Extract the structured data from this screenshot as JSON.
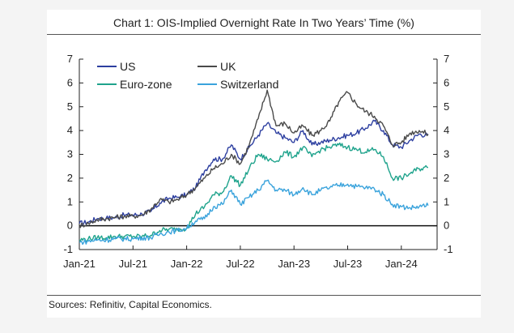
{
  "title": "Chart 1: OIS-Implied Overnight Rate In Two Years’ Time (%)",
  "source": "Sources: Refinitiv, Capital Economics.",
  "chart_data": {
    "type": "line",
    "ylim": [
      -1,
      7
    ],
    "y_ticks": [
      "-1",
      "0",
      "1",
      "2",
      "3",
      "4",
      "5",
      "6",
      "7"
    ],
    "x_ticks": [
      "Jan-21",
      "Jul-21",
      "Jan-22",
      "Jul-22",
      "Jan-23",
      "Jul-23",
      "Jan-24"
    ],
    "legend": {
      "placement": "top-left"
    },
    "series": [
      {
        "name": "US",
        "color": "#2d3fa0",
        "points": [
          [
            "2021-01",
            0.1
          ],
          [
            "2021-02",
            0.15
          ],
          [
            "2021-03",
            0.3
          ],
          [
            "2021-04",
            0.32
          ],
          [
            "2021-05",
            0.35
          ],
          [
            "2021-06",
            0.45
          ],
          [
            "2021-07",
            0.45
          ],
          [
            "2021-08",
            0.5
          ],
          [
            "2021-09",
            0.6
          ],
          [
            "2021-10",
            0.95
          ],
          [
            "2021-11",
            1.15
          ],
          [
            "2021-12",
            1.2
          ],
          [
            "2022-01",
            1.3
          ],
          [
            "2022-02",
            1.6
          ],
          [
            "2022-03",
            2.3
          ],
          [
            "2022-04",
            2.8
          ],
          [
            "2022-05",
            2.8
          ],
          [
            "2022-06",
            3.4
          ],
          [
            "2022-07",
            2.8
          ],
          [
            "2022-08",
            3.3
          ],
          [
            "2022-09",
            3.8
          ],
          [
            "2022-10",
            4.3
          ],
          [
            "2022-11",
            3.9
          ],
          [
            "2022-12",
            3.7
          ],
          [
            "2023-01",
            3.5
          ],
          [
            "2023-02",
            4.0
          ],
          [
            "2023-03",
            3.4
          ],
          [
            "2023-04",
            3.5
          ],
          [
            "2023-05",
            3.6
          ],
          [
            "2023-06",
            3.7
          ],
          [
            "2023-07",
            3.8
          ],
          [
            "2023-08",
            3.9
          ],
          [
            "2023-09",
            4.1
          ],
          [
            "2023-10",
            4.4
          ],
          [
            "2023-11",
            4.0
          ],
          [
            "2023-12",
            3.4
          ],
          [
            "2024-01",
            3.3
          ],
          [
            "2024-02",
            3.6
          ],
          [
            "2024-03",
            3.85
          ],
          [
            "2024-04",
            3.8
          ]
        ]
      },
      {
        "name": "UK",
        "color": "#4a4a4a",
        "points": [
          [
            "2021-01",
            0.0
          ],
          [
            "2021-02",
            0.1
          ],
          [
            "2021-03",
            0.25
          ],
          [
            "2021-04",
            0.3
          ],
          [
            "2021-05",
            0.35
          ],
          [
            "2021-06",
            0.4
          ],
          [
            "2021-07",
            0.4
          ],
          [
            "2021-08",
            0.45
          ],
          [
            "2021-09",
            0.7
          ],
          [
            "2021-10",
            1.1
          ],
          [
            "2021-11",
            1.0
          ],
          [
            "2021-12",
            1.1
          ],
          [
            "2022-01",
            1.3
          ],
          [
            "2022-02",
            1.6
          ],
          [
            "2022-03",
            2.0
          ],
          [
            "2022-04",
            2.4
          ],
          [
            "2022-05",
            2.6
          ],
          [
            "2022-06",
            3.0
          ],
          [
            "2022-07",
            2.6
          ],
          [
            "2022-08",
            3.4
          ],
          [
            "2022-09",
            4.5
          ],
          [
            "2022-10",
            5.7
          ],
          [
            "2022-11",
            4.2
          ],
          [
            "2022-12",
            4.3
          ],
          [
            "2023-01",
            3.9
          ],
          [
            "2023-02",
            4.2
          ],
          [
            "2023-03",
            3.8
          ],
          [
            "2023-04",
            4.0
          ],
          [
            "2023-05",
            4.4
          ],
          [
            "2023-06",
            5.2
          ],
          [
            "2023-07",
            5.6
          ],
          [
            "2023-08",
            5.1
          ],
          [
            "2023-09",
            4.8
          ],
          [
            "2023-10",
            4.6
          ],
          [
            "2023-11",
            4.2
          ],
          [
            "2023-12",
            3.4
          ],
          [
            "2024-01",
            3.5
          ],
          [
            "2024-02",
            3.9
          ],
          [
            "2024-03",
            4.0
          ],
          [
            "2024-04",
            3.85
          ]
        ]
      },
      {
        "name": "Euro-zone",
        "color": "#1fa38c",
        "points": [
          [
            "2021-01",
            -0.6
          ],
          [
            "2021-02",
            -0.55
          ],
          [
            "2021-03",
            -0.5
          ],
          [
            "2021-04",
            -0.5
          ],
          [
            "2021-05",
            -0.45
          ],
          [
            "2021-06",
            -0.45
          ],
          [
            "2021-07",
            -0.45
          ],
          [
            "2021-08",
            -0.45
          ],
          [
            "2021-09",
            -0.4
          ],
          [
            "2021-10",
            -0.2
          ],
          [
            "2021-11",
            -0.15
          ],
          [
            "2021-12",
            -0.15
          ],
          [
            "2022-01",
            -0.1
          ],
          [
            "2022-02",
            0.5
          ],
          [
            "2022-03",
            0.8
          ],
          [
            "2022-04",
            1.3
          ],
          [
            "2022-05",
            1.4
          ],
          [
            "2022-06",
            2.1
          ],
          [
            "2022-07",
            1.7
          ],
          [
            "2022-08",
            2.4
          ],
          [
            "2022-09",
            3.0
          ],
          [
            "2022-10",
            2.8
          ],
          [
            "2022-11",
            2.7
          ],
          [
            "2022-12",
            3.1
          ],
          [
            "2023-01",
            2.9
          ],
          [
            "2023-02",
            3.3
          ],
          [
            "2023-03",
            2.9
          ],
          [
            "2023-04",
            3.2
          ],
          [
            "2023-05",
            3.3
          ],
          [
            "2023-06",
            3.4
          ],
          [
            "2023-07",
            3.3
          ],
          [
            "2023-08",
            3.2
          ],
          [
            "2023-09",
            3.1
          ],
          [
            "2023-10",
            3.2
          ],
          [
            "2023-11",
            2.9
          ],
          [
            "2023-12",
            2.0
          ],
          [
            "2024-01",
            2.0
          ],
          [
            "2024-02",
            2.2
          ],
          [
            "2024-03",
            2.4
          ],
          [
            "2024-04",
            2.45
          ]
        ]
      },
      {
        "name": "Switzerland",
        "color": "#3aa3dc",
        "points": [
          [
            "2021-01",
            -0.7
          ],
          [
            "2021-02",
            -0.65
          ],
          [
            "2021-03",
            -0.6
          ],
          [
            "2021-04",
            -0.6
          ],
          [
            "2021-05",
            -0.55
          ],
          [
            "2021-06",
            -0.55
          ],
          [
            "2021-07",
            -0.55
          ],
          [
            "2021-08",
            -0.5
          ],
          [
            "2021-09",
            -0.5
          ],
          [
            "2021-10",
            -0.35
          ],
          [
            "2021-11",
            -0.25
          ],
          [
            "2021-12",
            -0.2
          ],
          [
            "2022-01",
            -0.1
          ],
          [
            "2022-02",
            0.2
          ],
          [
            "2022-03",
            0.3
          ],
          [
            "2022-04",
            0.8
          ],
          [
            "2022-05",
            0.9
          ],
          [
            "2022-06",
            1.5
          ],
          [
            "2022-07",
            0.9
          ],
          [
            "2022-08",
            1.2
          ],
          [
            "2022-09",
            1.5
          ],
          [
            "2022-10",
            1.9
          ],
          [
            "2022-11",
            1.5
          ],
          [
            "2022-12",
            1.5
          ],
          [
            "2023-01",
            1.3
          ],
          [
            "2023-02",
            1.6
          ],
          [
            "2023-03",
            1.3
          ],
          [
            "2023-04",
            1.5
          ],
          [
            "2023-05",
            1.6
          ],
          [
            "2023-06",
            1.7
          ],
          [
            "2023-07",
            1.75
          ],
          [
            "2023-08",
            1.65
          ],
          [
            "2023-09",
            1.6
          ],
          [
            "2023-10",
            1.55
          ],
          [
            "2023-11",
            1.3
          ],
          [
            "2023-12",
            0.9
          ],
          [
            "2024-01",
            0.8
          ],
          [
            "2024-02",
            0.75
          ],
          [
            "2024-03",
            0.8
          ],
          [
            "2024-04",
            0.85
          ]
        ]
      }
    ]
  }
}
